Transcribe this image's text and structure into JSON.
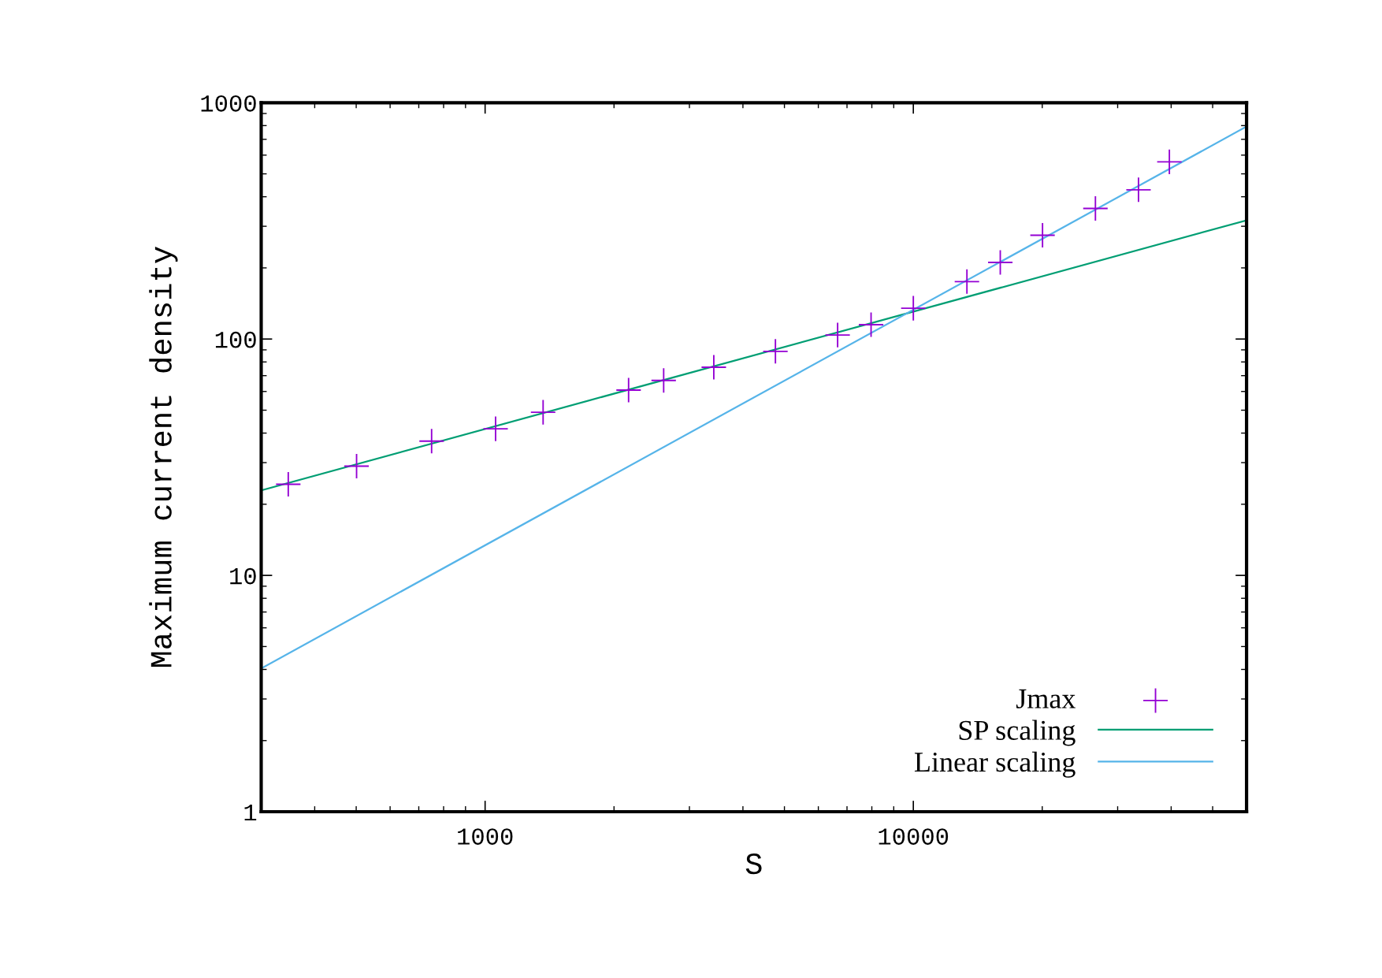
{
  "chart_data": {
    "type": "line",
    "xlabel": "S",
    "ylabel": "Maximum current density",
    "log": "xy",
    "xlim": [
      300,
      60000
    ],
    "ylim": [
      1,
      1000
    ],
    "xticks": [
      1000,
      10000
    ],
    "yticks": [
      1,
      10,
      100,
      1000
    ],
    "grid": false,
    "legend": "bottom right",
    "series": [
      {
        "name": "Jmax",
        "type": "scatter",
        "marker": "cross",
        "color": "#9400d3",
        "x": [
          347,
          501,
          750,
          1058,
          1366,
          2163,
          2612,
          3420,
          4764,
          6656,
          7967,
          10000,
          13340,
          15960,
          20030,
          26620,
          33560,
          39620
        ],
        "values": [
          24.3,
          29,
          37,
          41.7,
          49,
          60.8,
          66.8,
          76,
          88.7,
          104,
          115,
          135,
          175,
          211,
          275,
          357,
          428,
          562
        ]
      },
      {
        "name": "SP scaling",
        "color": "#009e73",
        "x": [
          300,
          60000
        ],
        "values": [
          22.9,
          318
        ]
      },
      {
        "name": "Linear scaling",
        "color": "#56b4e9",
        "x": [
          300,
          60000
        ],
        "values": [
          4.04,
          793
        ]
      }
    ]
  }
}
